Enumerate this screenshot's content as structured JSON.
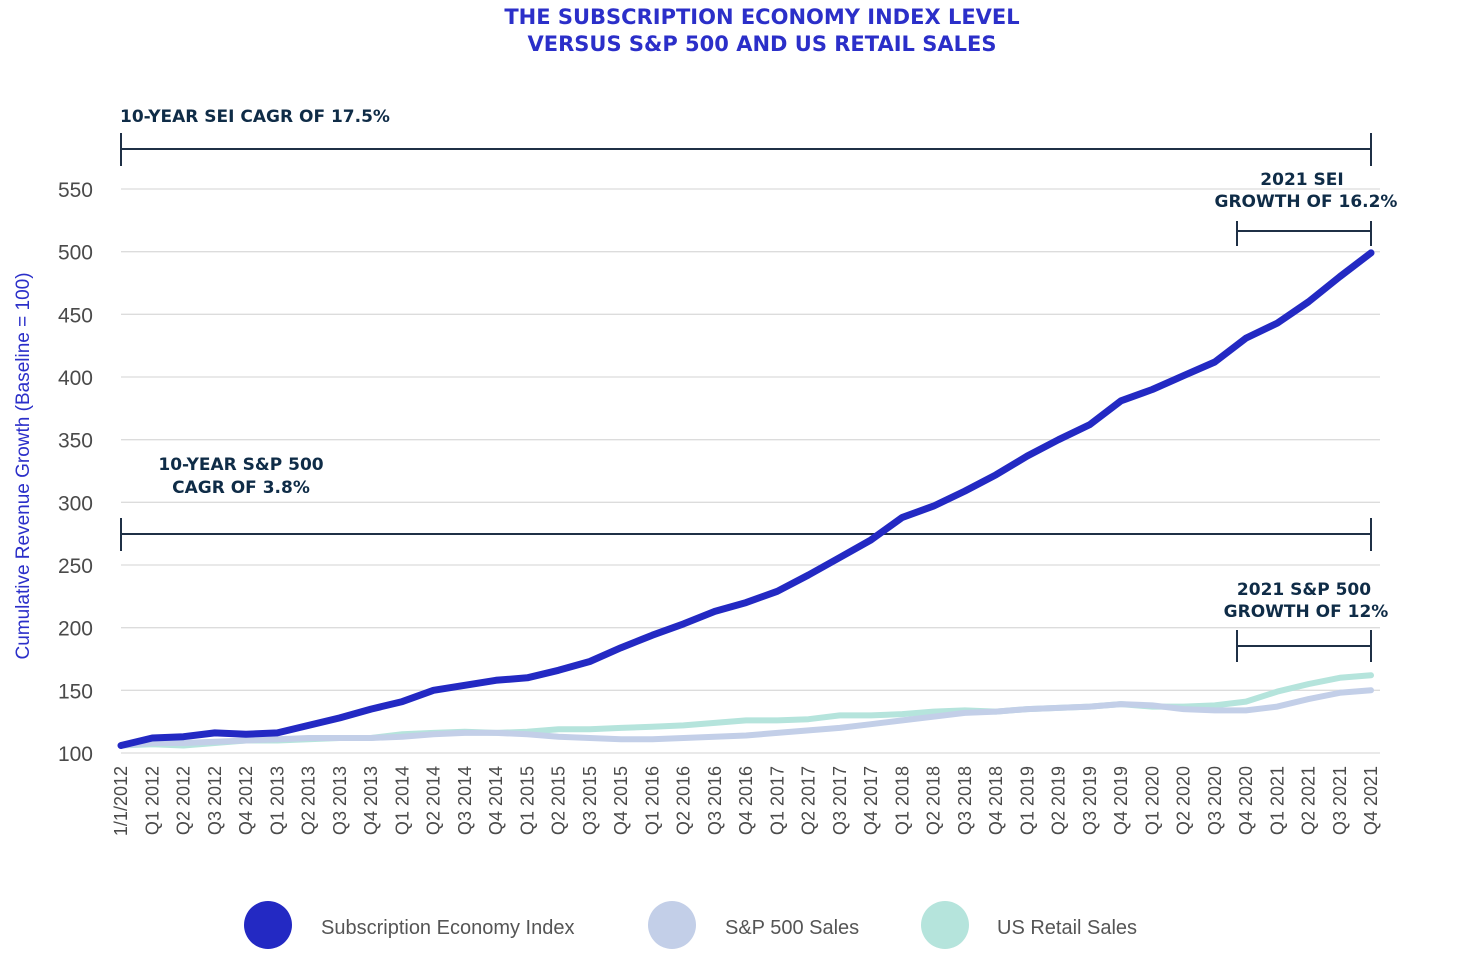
{
  "chart_data": {
    "type": "line",
    "title_lines": [
      "THE SUBSCRIPTION ECONOMY INDEX LEVEL",
      "VERSUS S&P 500 AND US RETAIL SALES"
    ],
    "ylabel": "Cumulative Revenue Growth (Baseline = 100)",
    "xlabel": "",
    "ylim": [
      100,
      550
    ],
    "yticks": [
      100,
      150,
      200,
      250,
      300,
      350,
      400,
      450,
      500,
      550
    ],
    "grid": true,
    "legend_position": "bottom",
    "categories": [
      "1/1/2012",
      "Q1 2012",
      "Q2 2012",
      "Q3 2012",
      "Q4 2012",
      "Q1 2013",
      "Q2 2013",
      "Q3 2013",
      "Q4 2013",
      "Q1 2014",
      "Q2 2014",
      "Q3 2014",
      "Q4 2014",
      "Q1 2015",
      "Q2 2015",
      "Q3 2015",
      "Q4 2015",
      "Q1 2016",
      "Q2 2016",
      "Q3 2016",
      "Q4 2016",
      "Q1 2017",
      "Q2 2017",
      "Q3 2017",
      "Q4 2017",
      "Q1 2018",
      "Q2 2018",
      "Q3 2018",
      "Q4 2018",
      "Q1 2019",
      "Q2 2019",
      "Q3 2019",
      "Q4 2019",
      "Q1 2020",
      "Q2 2020",
      "Q3 2020",
      "Q4 2020",
      "Q1 2021",
      "Q2 2021",
      "Q3 2021",
      "Q4 2021"
    ],
    "series": [
      {
        "name": "Subscription Economy Index",
        "color": "#2329c3",
        "values": [
          106,
          112,
          113,
          116,
          115,
          116,
          122,
          128,
          135,
          141,
          150,
          154,
          158,
          160,
          166,
          173,
          184,
          194,
          203,
          213,
          220,
          229,
          242,
          256,
          270,
          288,
          297,
          309,
          322,
          337,
          350,
          362,
          381,
          390,
          401,
          412,
          431,
          443,
          460,
          480,
          499
        ]
      },
      {
        "name": "S&P 500 Sales",
        "color": "#c3cfe8",
        "values": [
          106,
          108,
          108,
          109,
          110,
          111,
          112,
          112,
          112,
          113,
          115,
          116,
          116,
          115,
          113,
          112,
          111,
          111,
          112,
          113,
          114,
          116,
          118,
          120,
          123,
          126,
          129,
          132,
          133,
          135,
          136,
          137,
          139,
          138,
          135,
          134,
          134,
          137,
          143,
          148,
          150
        ]
      },
      {
        "name": "US Retail Sales",
        "color": "#b5e4dc",
        "values": [
          106,
          107,
          106,
          108,
          110,
          110,
          111,
          112,
          112,
          115,
          116,
          117,
          116,
          117,
          119,
          119,
          120,
          121,
          122,
          124,
          126,
          126,
          127,
          130,
          130,
          131,
          133,
          134,
          133,
          135,
          136,
          137,
          139,
          137,
          137,
          138,
          141,
          149,
          155,
          160,
          162
        ]
      }
    ],
    "annotations": {
      "sei_cagr": "10-YEAR SEI CAGR OF 17.5%",
      "sp_cagr_line1": "10-YEAR S&P 500",
      "sp_cagr_line2": "CAGR OF 3.8%",
      "sei_2021_line1": "2021 SEI",
      "sei_2021_line2": "GROWTH OF 16.2%",
      "sp_2021_line1": "2021 S&P 500",
      "sp_2021_line2": "GROWTH OF 12%"
    }
  }
}
